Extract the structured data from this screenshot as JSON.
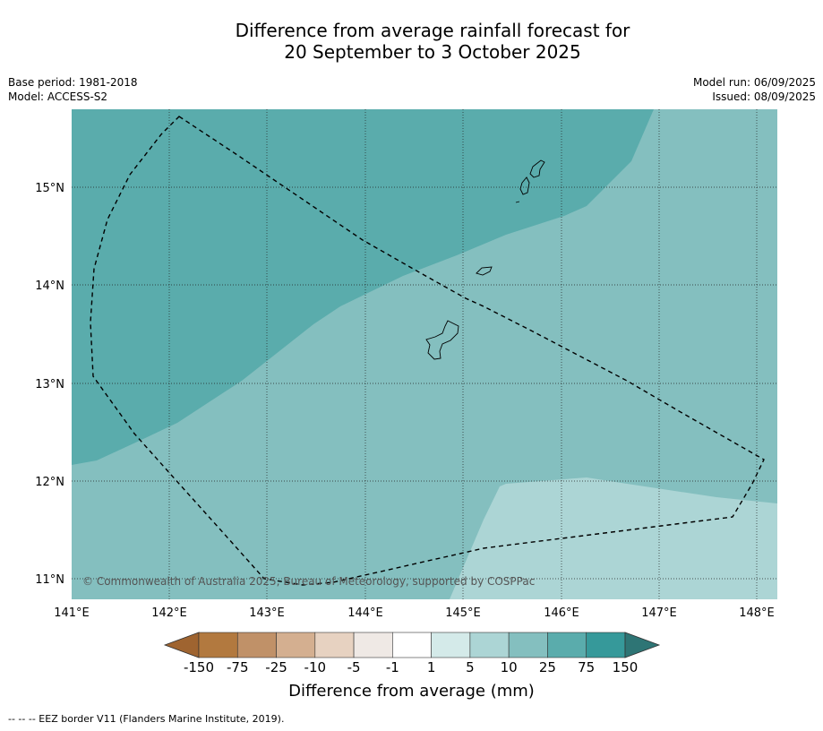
{
  "title_line1": "Difference from average rainfall forecast for",
  "title_line2": "20 September to 3 October 2025",
  "meta": {
    "base_period": "Base period: 1981-2018",
    "model": "Model: ACCESS-S2",
    "model_run": "Model run: 06/09/2025",
    "issued": "Issued: 08/09/2025"
  },
  "map": {
    "copyright": "© Commonwealth of Australia 2025, Bureau of Meteorology, supported by COSPPac",
    "lon_labels": [
      "141°E",
      "142°E",
      "143°E",
      "144°E",
      "145°E",
      "146°E",
      "147°E",
      "148°E"
    ],
    "lat_labels": [
      "15°N",
      "14°N",
      "13°N",
      "12°N",
      "11°N"
    ],
    "zones": [
      {
        "name": "25 to 75",
        "color": "#5aacac"
      },
      {
        "name": "10 to 25",
        "color": "#84bfbf"
      },
      {
        "name": "5 to 10",
        "color": "#acd5d5"
      }
    ]
  },
  "colorbar": {
    "title": "Difference from average (mm)",
    "labels": [
      "-150",
      "-75",
      "-25",
      "-10",
      "-5",
      "-1",
      "1",
      "5",
      "10",
      "25",
      "75",
      "150"
    ],
    "colors": [
      "#9f6430",
      "#b2793f",
      "#c09168",
      "#d4af90",
      "#e7d2c1",
      "#efe9e5",
      "#ffffff",
      "#d4eae9",
      "#acd5d5",
      "#84bfbf",
      "#5aacac",
      "#36999a",
      "#2e7575"
    ]
  },
  "footnote": "--  --  -- EEZ border V11 (Flanders Marine Institute, 2019)."
}
